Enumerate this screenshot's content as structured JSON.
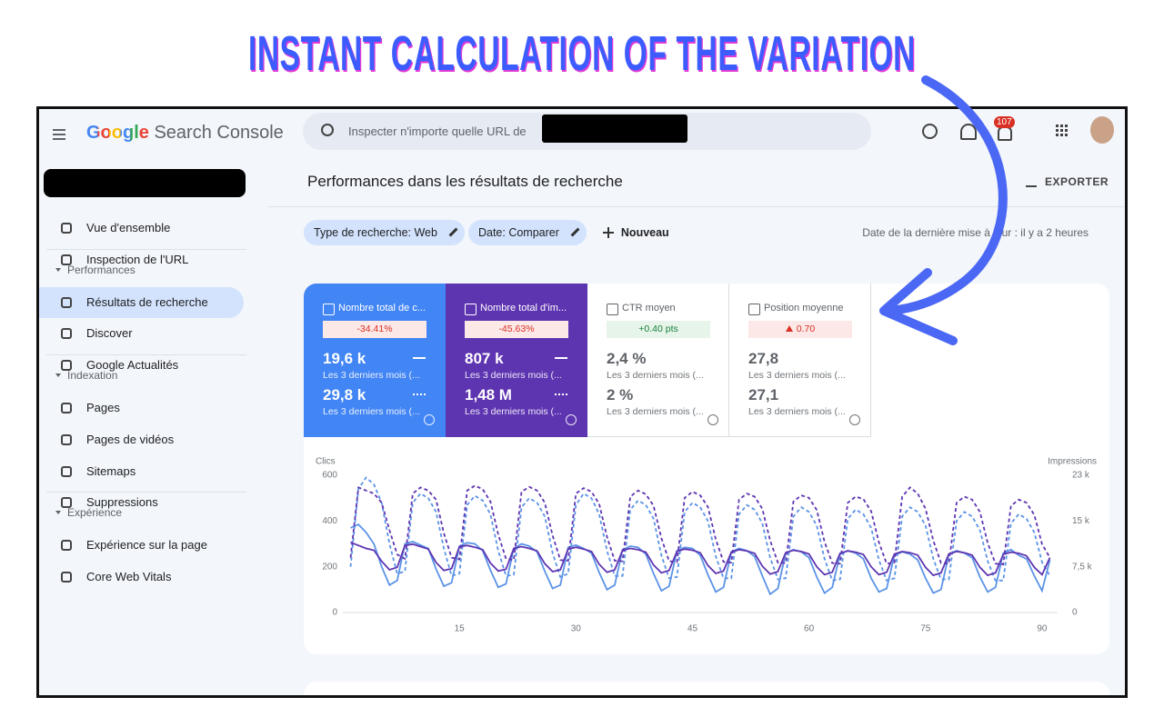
{
  "banner": {
    "title": "INSTANT CALCULATION OF THE VARIATION"
  },
  "topbar": {
    "brand": "Google",
    "product": "Search Console",
    "search_placeholder": "Inspecter n'importe quelle URL de",
    "notifications": "107"
  },
  "sidebar": {
    "groups": [
      {
        "items": [
          "Vue d'ensemble",
          "Inspection de l'URL"
        ]
      },
      {
        "title": "Performances",
        "items": [
          "Résultats de recherche",
          "Discover",
          "Google Actualités"
        ]
      },
      {
        "title": "Indexation",
        "items": [
          "Pages",
          "Pages de vidéos",
          "Sitemaps",
          "Suppressions"
        ]
      },
      {
        "title": "Expérience",
        "items": [
          "Expérience sur la page",
          "Core Web Vitals"
        ]
      }
    ]
  },
  "header": {
    "title": "Performances dans les résultats de recherche",
    "export": "EXPORTER"
  },
  "filters": {
    "chips": [
      "Type de recherche: Web",
      "Date: Comparer"
    ],
    "new": "Nouveau",
    "last_update": "Date de la dernière mise à jour : il y a 2 heures"
  },
  "metrics": [
    {
      "label": "Nombre total de c...",
      "change": "-34.41%",
      "current": "19,6 k",
      "current_period": "Les 3 derniers mois (...",
      "previous": "29,8 k",
      "previous_period": "Les 3 derniers mois (..."
    },
    {
      "label": "Nombre total d'im...",
      "change": "-45.63%",
      "current": "807 k",
      "current_period": "Les 3 derniers mois (...",
      "previous": "1,48 M",
      "previous_period": "Les 3 derniers mois (..."
    },
    {
      "label": "CTR moyen",
      "change": "+0.40 pts",
      "current": "2,4 %",
      "current_period": "Les 3 derniers mois (...",
      "previous": "2 %",
      "previous_period": "Les 3 derniers mois (..."
    },
    {
      "label": "Position moyenne",
      "change": "0.70",
      "current": "27,8",
      "current_period": "Les 3 derniers mois (...",
      "previous": "27,1",
      "previous_period": "Les 3 derniers mois (..."
    }
  ],
  "chart": {
    "type": "line",
    "y_label": "Clics",
    "y2_label": "Impressions",
    "xlim": [
      0,
      92
    ],
    "xticks": [
      15,
      30,
      45,
      60,
      75,
      90
    ],
    "ylim": [
      0,
      600
    ],
    "yticks": [
      0,
      200,
      400,
      600
    ],
    "y2lim": [
      0,
      22500
    ],
    "y2ticks": [
      0,
      {
        "value": 7500,
        "label": "7,5 k"
      },
      {
        "value": 15000,
        "label": "15 k"
      },
      {
        "value": 22500,
        "label": "23 k"
      }
    ],
    "x": [
      1,
      2,
      3,
      4,
      5,
      6,
      7,
      8,
      9,
      10,
      11,
      12,
      13,
      14,
      15,
      16,
      17,
      18,
      19,
      20,
      21,
      22,
      23,
      24,
      25,
      26,
      27,
      28,
      29,
      30,
      31,
      32,
      33,
      34,
      35,
      36,
      37,
      38,
      39,
      40,
      41,
      42,
      43,
      44,
      45,
      46,
      47,
      48,
      49,
      50,
      51,
      52,
      53,
      54,
      55,
      56,
      57,
      58,
      59,
      60,
      61,
      62,
      63,
      64,
      65,
      66,
      67,
      68,
      69,
      70,
      71,
      72,
      73,
      74,
      75,
      76,
      77,
      78,
      79,
      80,
      81,
      82,
      83,
      84,
      85,
      86,
      87,
      88,
      89,
      90,
      91
    ],
    "series": [
      {
        "color": "#5b93e6",
        "style": "solid",
        "axis": "y",
        "values": [
          370,
          385,
          350,
          300,
          200,
          120,
          140,
          300,
          310,
          295,
          280,
          190,
          115,
          130,
          290,
          305,
          300,
          270,
          185,
          110,
          125,
          280,
          300,
          290,
          265,
          180,
          105,
          120,
          285,
          295,
          280,
          260,
          175,
          100,
          120,
          275,
          290,
          285,
          255,
          170,
          95,
          115,
          270,
          285,
          280,
          250,
          165,
          90,
          110,
          265,
          280,
          270,
          245,
          160,
          80,
          105,
          260,
          275,
          265,
          240,
          155,
          85,
          110,
          255,
          270,
          260,
          235,
          150,
          90,
          105,
          250,
          265,
          255,
          230,
          150,
          85,
          100,
          255,
          270,
          260,
          240,
          155,
          90,
          110,
          260,
          275,
          250,
          235,
          160,
          95,
          230
        ]
      },
      {
        "color": "#5b93e6",
        "style": "dashed",
        "axis": "y",
        "values": [
          200,
          540,
          590,
          560,
          480,
          300,
          170,
          180,
          480,
          520,
          500,
          440,
          280,
          160,
          170,
          470,
          510,
          490,
          430,
          270,
          160,
          165,
          460,
          500,
          480,
          420,
          260,
          155,
          170,
          470,
          520,
          500,
          430,
          270,
          160,
          160,
          450,
          490,
          470,
          410,
          250,
          150,
          155,
          440,
          480,
          460,
          400,
          245,
          150,
          150,
          430,
          470,
          450,
          390,
          240,
          145,
          150,
          420,
          460,
          440,
          380,
          235,
          140,
          145,
          410,
          450,
          430,
          370,
          230,
          140,
          150,
          420,
          460,
          440,
          380,
          235,
          145,
          145,
          400,
          440,
          420,
          360,
          225,
          140,
          140,
          390,
          430,
          410,
          350,
          220,
          160
        ]
      },
      {
        "color": "#5e35b1",
        "style": "solid",
        "axis": "y2",
        "values": [
          11500,
          11000,
          10500,
          10200,
          8400,
          7000,
          7400,
          11000,
          11200,
          10800,
          10400,
          8200,
          6900,
          7200,
          10800,
          11000,
          10700,
          10300,
          8100,
          6800,
          7100,
          10500,
          10800,
          10500,
          10100,
          8000,
          6700,
          7000,
          10400,
          10700,
          10400,
          10000,
          7900,
          6600,
          7000,
          10200,
          10500,
          10300,
          9900,
          7800,
          6500,
          6900,
          10000,
          10400,
          10200,
          9800,
          7700,
          6400,
          6800,
          9900,
          10300,
          10100,
          9700,
          7600,
          6300,
          6700,
          9800,
          10200,
          10000,
          9600,
          7500,
          6200,
          6600,
          9700,
          10100,
          9900,
          9500,
          7500,
          6200,
          6600,
          9600,
          10000,
          9800,
          9400,
          7400,
          6100,
          6500,
          9600,
          10000,
          9800,
          9400,
          7400,
          6100,
          6500,
          9500,
          9900,
          9700,
          9300,
          7400,
          6200,
          9000
        ]
      },
      {
        "color": "#5e35b1",
        "style": "dashed",
        "axis": "y2",
        "values": [
          9000,
          20500,
          20000,
          19500,
          18000,
          13500,
          9500,
          8800,
          19500,
          20500,
          20000,
          18500,
          13000,
          9000,
          8700,
          20000,
          20800,
          20200,
          18200,
          12800,
          8800,
          8600,
          19800,
          20600,
          20000,
          18000,
          12600,
          8600,
          8500,
          19500,
          20400,
          19800,
          17800,
          12400,
          8500,
          8400,
          19000,
          20000,
          19400,
          17500,
          12200,
          8400,
          8300,
          18800,
          19800,
          19200,
          17300,
          12000,
          8300,
          8200,
          18500,
          19500,
          19000,
          17000,
          11800,
          8200,
          8100,
          18200,
          19200,
          18800,
          16800,
          11600,
          8100,
          8000,
          18000,
          19000,
          18600,
          16600,
          11500,
          8000,
          8200,
          19000,
          20500,
          19500,
          17000,
          11800,
          8100,
          8000,
          18000,
          19000,
          18500,
          16500,
          11400,
          8000,
          7900,
          17500,
          18500,
          18000,
          16000,
          11200,
          9000
        ]
      }
    ]
  }
}
